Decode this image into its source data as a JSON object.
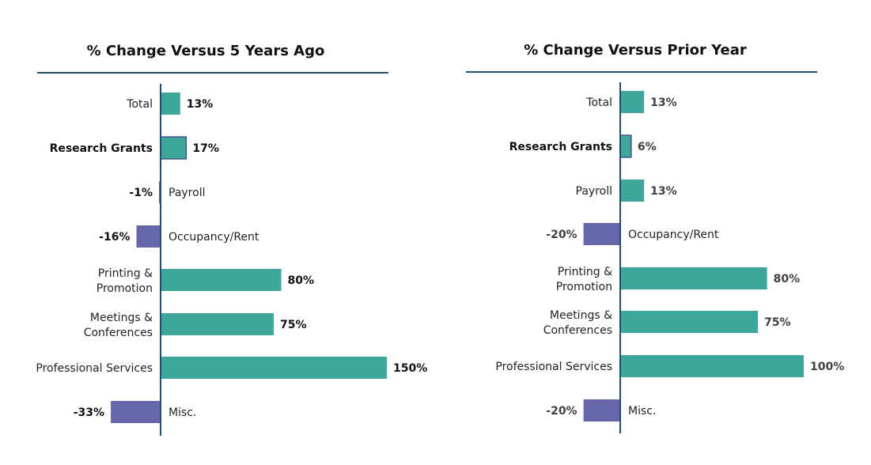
{
  "chart_data": [
    {
      "type": "bar",
      "orientation": "horizontal",
      "title": "% Change Versus 5 Years Ago",
      "categories": [
        "Total",
        "Research Grants",
        "Payroll",
        "Occupancy/Rent",
        "Printing & Promotion",
        "Meetings & Conferences",
        "Professional Services",
        "Misc."
      ],
      "values": [
        13,
        17,
        -1,
        -16,
        80,
        75,
        150,
        -33
      ],
      "value_labels": [
        "13%",
        "17%",
        "-1%",
        "-16%",
        "80%",
        "75%",
        "150%",
        "-33%"
      ],
      "highlighted_category": "Research Grants",
      "colors": {
        "positive": "#3ea69b",
        "negative": "#6666aa",
        "axis": "#1f4e6e",
        "highlight_border": "#3b3b7a"
      }
    },
    {
      "type": "bar",
      "orientation": "horizontal",
      "title": "% Change Versus Prior Year",
      "categories": [
        "Total",
        "Research Grants",
        "Payroll",
        "Occupancy/Rent",
        "Printing & Promotion",
        "Meetings & Conferences",
        "Professional Services",
        "Misc."
      ],
      "values": [
        13,
        6,
        13,
        -20,
        80,
        75,
        100,
        -20
      ],
      "value_labels": [
        "13%",
        "6%",
        "13%",
        "-20%",
        "80%",
        "75%",
        "100%",
        "-20%"
      ],
      "highlighted_category": "Research Grants",
      "colors": {
        "positive": "#3ea69b",
        "negative": "#6666aa",
        "axis": "#1f4e6e",
        "highlight_border": "#3b3b7a"
      }
    }
  ]
}
